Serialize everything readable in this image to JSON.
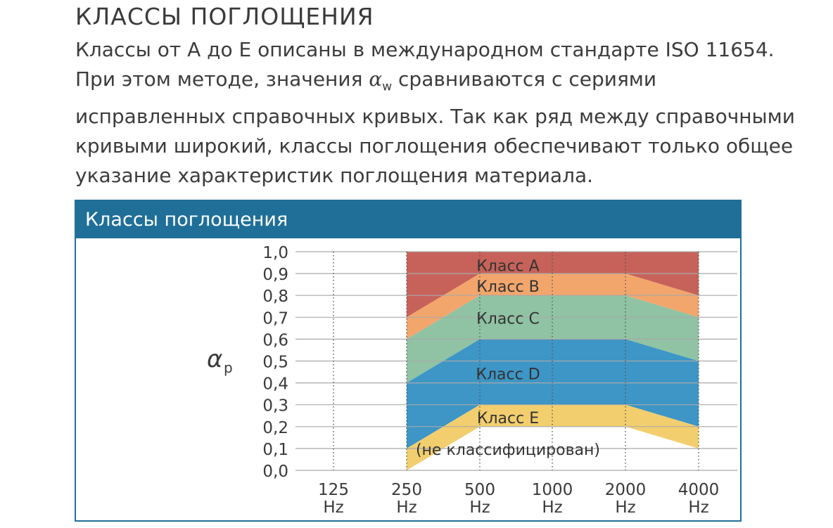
{
  "page": {
    "title": "КЛАССЫ ПОГЛОЩЕНИЯ",
    "intro": {
      "line1": "Классы от А до E описаны в международном стандарте ISO 11654.",
      "line2_before": "При этом методе, значения ",
      "alpha_symbol": "α",
      "alpha_sub": "w",
      "line2_after": " сравниваются с сериями",
      "line3": "исправленных справочных кривых. Так как ряд между справочными",
      "line4": "кривыми широкий, классы поглощения обеспечивают только общее",
      "line5": "указание характеристик поглощения материала."
    }
  },
  "panel": {
    "header": "Классы поглощения"
  },
  "chart_data": {
    "type": "area",
    "title": "",
    "ylabel_symbol": "α",
    "ylabel_sub": "p",
    "xlabel": "",
    "x_ticks": [
      {
        "value": "125",
        "unit": "Hz"
      },
      {
        "value": "250",
        "unit": "Hz"
      },
      {
        "value": "500",
        "unit": "Hz"
      },
      {
        "value": "1000",
        "unit": "Hz"
      },
      {
        "value": "2000",
        "unit": "Hz"
      },
      {
        "value": "4000",
        "unit": "Hz"
      }
    ],
    "y_ticks": [
      "0,0",
      "0,1",
      "0,2",
      "0,3",
      "0,4",
      "0,5",
      "0,6",
      "0,7",
      "0,8",
      "0,9",
      "1,0"
    ],
    "ylim": [
      0,
      1.0
    ],
    "grid": {
      "horizontal": true,
      "vertical": "dotted"
    },
    "band_x": [
      "250",
      "500",
      "1000",
      "2000",
      "4000"
    ],
    "bands": [
      {
        "name": "Класс A",
        "color": "#c7625a",
        "lower": [
          0.7,
          0.9,
          0.9,
          0.9,
          0.8
        ],
        "upper": [
          1.0,
          1.0,
          1.0,
          1.0,
          1.0
        ],
        "label_at": 0.94
      },
      {
        "name": "Класс B",
        "color": "#f2a66c",
        "lower": [
          0.6,
          0.8,
          0.8,
          0.8,
          0.7
        ],
        "upper": [
          0.7,
          0.9,
          0.9,
          0.9,
          0.8
        ],
        "label_at": 0.845
      },
      {
        "name": "Класс C",
        "color": "#8fc3a3",
        "lower": [
          0.4,
          0.6,
          0.6,
          0.6,
          0.5
        ],
        "upper": [
          0.6,
          0.8,
          0.8,
          0.8,
          0.7
        ],
        "label_at": 0.7
      },
      {
        "name": "Класс D",
        "color": "#3d96c6",
        "lower": [
          0.1,
          0.3,
          0.3,
          0.3,
          0.2
        ],
        "upper": [
          0.4,
          0.6,
          0.6,
          0.6,
          0.5
        ],
        "label_at": 0.445
      },
      {
        "name": "Класс E",
        "color": "#f2ce6e",
        "lower": [
          0.0,
          0.2,
          0.2,
          0.2,
          0.1
        ],
        "upper": [
          0.1,
          0.3,
          0.3,
          0.3,
          0.2
        ],
        "label_at": 0.245
      }
    ],
    "annotation": "(не классифицирован)",
    "annotation_at": 0.1,
    "colors": {
      "grid": "#a9a9a9",
      "axis_text": "#3a3a3a",
      "header": "#1f6f98"
    }
  }
}
